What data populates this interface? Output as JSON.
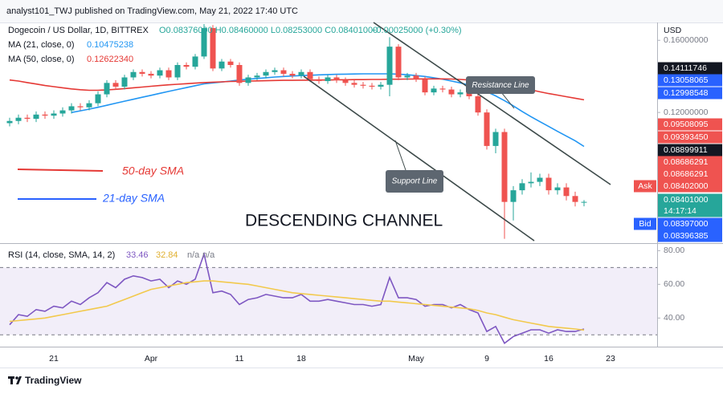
{
  "header": "analyst101_TWJ published on TradingView.com, May 21, 2022 17:40 UTC",
  "currency": "USD",
  "footer": "TradingView",
  "annotations": {
    "resistance": "Resistance Line",
    "support": "Support Line",
    "sma50": "50-day SMA",
    "sma21": "21-day SMA",
    "channel": "DESCENDING CHANNEL"
  },
  "price_labels": [
    {
      "text": "0.14111746",
      "color": "#131722"
    },
    {
      "text": "0.13058065",
      "color": "#2962ff"
    },
    {
      "text": "0.12998548",
      "color": "#2962ff"
    },
    {
      "text": "0.09508095",
      "color": "#ef5350"
    },
    {
      "text": "0.09393450",
      "color": "#ef5350"
    },
    {
      "text": "0.08899911",
      "color": "#131722"
    },
    {
      "text": "0.08686291",
      "color": "#ef5350"
    },
    {
      "text": "0.08686291",
      "color": "#ef5350"
    },
    {
      "tag": "Ask",
      "text": "0.08402000",
      "color": "#ef5350"
    },
    {
      "text": "0.08401000",
      "color": "#26a69a"
    },
    {
      "text": "14:17:14",
      "color": "#26a69a"
    },
    {
      "tag": "Bid",
      "text": "0.08397000",
      "color": "#2962ff"
    },
    {
      "text": "0.08396385",
      "color": "#2962ff"
    }
  ],
  "chart_data": [
    {
      "type": "candlestick",
      "title": "Dogecoin / US Dollar, 1D, BITTREX",
      "ohlc": "O0.08376000 H0.08460000 L0.08253000 C0.08401000",
      "change": "+0.00025000 (+0.30%)",
      "categories": [
        null,
        null,
        null,
        null,
        null,
        "21",
        null,
        null,
        null,
        null,
        null,
        null,
        null,
        null,
        null,
        null,
        "Apr",
        null,
        null,
        null,
        null,
        null,
        null,
        null,
        null,
        null,
        "11",
        null,
        null,
        null,
        null,
        null,
        null,
        "18",
        null,
        null,
        null,
        null,
        null,
        null,
        null,
        null,
        null,
        null,
        null,
        null,
        "May",
        null,
        null,
        null,
        null,
        null,
        null,
        null,
        "9",
        null,
        null,
        null,
        null,
        null,
        null,
        "16",
        null,
        null,
        null,
        null,
        null,
        null,
        "23",
        null,
        null
      ],
      "open": [
        0.115,
        0.116,
        0.1175,
        0.117,
        0.119,
        0.1185,
        0.1195,
        0.121,
        0.123,
        0.1225,
        0.1245,
        0.129,
        0.135,
        0.133,
        0.138,
        0.141,
        0.14,
        0.139,
        0.142,
        0.138,
        0.145,
        0.144,
        0.15,
        0.168,
        0.143,
        0.147,
        0.145,
        0.135,
        0.138,
        0.139,
        0.141,
        0.142,
        0.14,
        0.139,
        0.141,
        0.137,
        0.136,
        0.138,
        0.1365,
        0.135,
        0.134,
        0.1335,
        0.133,
        0.134,
        0.156,
        0.138,
        0.139,
        0.137,
        0.13,
        0.132,
        0.1315,
        0.129,
        0.13,
        0.128,
        0.12,
        0.105,
        0.111,
        0.084,
        0.088,
        0.0905,
        0.091,
        0.0925,
        0.088,
        0.089,
        0.086,
        0.08376,
        null,
        null,
        null,
        null,
        null
      ],
      "high": [
        0.1175,
        0.119,
        0.119,
        0.1205,
        0.1205,
        0.121,
        0.1225,
        0.1245,
        0.1245,
        0.126,
        0.1305,
        0.1365,
        0.1365,
        0.1395,
        0.1425,
        0.1425,
        0.1415,
        0.1435,
        0.1435,
        0.1465,
        0.1465,
        0.1515,
        0.18,
        0.17,
        0.1485,
        0.1485,
        0.1465,
        0.1395,
        0.1405,
        0.1425,
        0.1435,
        0.1435,
        0.1415,
        0.1425,
        0.1425,
        0.1385,
        0.1395,
        0.1395,
        0.138,
        0.1365,
        0.1355,
        0.135,
        0.1355,
        0.162,
        0.1575,
        0.1405,
        0.1405,
        0.1385,
        0.1335,
        0.1335,
        0.133,
        0.1315,
        0.1315,
        0.1295,
        0.1215,
        0.1125,
        0.1125,
        0.0895,
        0.092,
        0.0945,
        0.094,
        0.094,
        0.0905,
        0.0905,
        0.0875,
        0.0846,
        null,
        null,
        null,
        null,
        null
      ],
      "low": [
        0.1135,
        0.1145,
        0.1155,
        0.1155,
        0.117,
        0.117,
        0.118,
        0.1195,
        0.121,
        0.121,
        0.123,
        0.1275,
        0.1315,
        0.1315,
        0.1365,
        0.1385,
        0.1375,
        0.1375,
        0.1365,
        0.1365,
        0.1425,
        0.1425,
        0.1485,
        0.1415,
        0.1415,
        0.1435,
        0.1335,
        0.1335,
        0.1365,
        0.1375,
        0.1395,
        0.1385,
        0.1375,
        0.1375,
        0.1355,
        0.1345,
        0.1345,
        0.135,
        0.1335,
        0.1325,
        0.132,
        0.1315,
        0.1315,
        0.128,
        0.1365,
        0.1365,
        0.1355,
        0.1285,
        0.1285,
        0.13,
        0.1275,
        0.1275,
        0.1265,
        0.1185,
        0.1035,
        0.102,
        0.0725,
        0.078,
        0.0865,
        0.089,
        0.0895,
        0.0865,
        0.0865,
        0.0845,
        0.0825,
        0.08253,
        null,
        null,
        null,
        null,
        null
      ],
      "close": [
        0.116,
        0.1175,
        0.117,
        0.119,
        0.1185,
        0.1195,
        0.121,
        0.123,
        0.1225,
        0.1245,
        0.129,
        0.135,
        0.133,
        0.138,
        0.141,
        0.14,
        0.139,
        0.142,
        0.138,
        0.145,
        0.144,
        0.15,
        0.168,
        0.143,
        0.147,
        0.145,
        0.135,
        0.138,
        0.139,
        0.141,
        0.142,
        0.14,
        0.139,
        0.141,
        0.137,
        0.136,
        0.138,
        0.1365,
        0.135,
        0.134,
        0.1335,
        0.133,
        0.134,
        0.156,
        0.138,
        0.139,
        0.137,
        0.13,
        0.132,
        0.1315,
        0.129,
        0.13,
        0.128,
        0.12,
        0.105,
        0.111,
        0.084,
        0.088,
        0.0905,
        0.091,
        0.0925,
        0.088,
        0.089,
        0.086,
        0.084,
        0.08401,
        null,
        null,
        null,
        null,
        null
      ],
      "up_color": "#26a69a",
      "down_color": "#ef5350",
      "ylim": [
        0.0715,
        0.1707
      ],
      "log": true,
      "yticks": [
        {
          "value": 0.16,
          "label": "0.16000000"
        },
        {
          "value": 0.12,
          "label": "0.12000000"
        }
      ],
      "series": [
        {
          "name": "MA (21, close, 0)",
          "color": "#2196f3",
          "legend_value": "0.10475238",
          "values": [
            null,
            null,
            null,
            null,
            null,
            null,
            null,
            0.12,
            0.1208,
            0.1216,
            0.1225,
            0.1235,
            0.1245,
            0.1255,
            0.1265,
            0.1275,
            0.1285,
            0.1295,
            0.1305,
            0.1315,
            0.1325,
            0.1335,
            0.1345,
            0.135,
            0.1355,
            0.136,
            0.1366,
            0.137,
            0.1374,
            0.1378,
            0.1382,
            0.1385,
            0.1388,
            0.139,
            0.1392,
            0.1394,
            0.1396,
            0.1397,
            0.1398,
            0.1399,
            0.14,
            0.14,
            0.14,
            0.14,
            0.1398,
            0.1395,
            0.139,
            0.1385,
            0.1378,
            0.137,
            0.136,
            0.135,
            0.1338,
            0.1322,
            0.1303,
            0.1282,
            0.1258,
            0.1232,
            0.1205,
            0.118,
            0.1157,
            0.1135,
            0.1113,
            0.1092,
            0.1072,
            0.1048,
            null,
            null,
            null,
            null,
            null
          ]
        },
        {
          "name": "MA (50, close, 0)",
          "color": "#e53935",
          "legend_value": "0.12622340",
          "values": [
            0.1366,
            0.136,
            0.1352,
            0.1344,
            0.1336,
            0.133,
            0.1324,
            0.1318,
            0.1314,
            0.1311,
            0.1311,
            0.1313,
            0.1316,
            0.132,
            0.1324,
            0.1328,
            0.1332,
            0.1336,
            0.134,
            0.1343,
            0.1346,
            0.1349,
            0.1352,
            0.1354,
            0.1356,
            0.1358,
            0.1359,
            0.136,
            0.1361,
            0.1362,
            0.1363,
            0.1364,
            0.1364,
            0.1365,
            0.1365,
            0.1366,
            0.1366,
            0.1367,
            0.1367,
            0.1368,
            0.1368,
            0.1369,
            0.1369,
            0.137,
            0.137,
            0.1371,
            0.1371,
            0.1372,
            0.1372,
            0.1372,
            0.1371,
            0.1369,
            0.1366,
            0.1362,
            0.1357,
            0.135,
            0.1342,
            0.1333,
            0.1323,
            0.1313,
            0.1303,
            0.1294,
            0.1286,
            0.1278,
            0.127,
            0.1262,
            null,
            null,
            null,
            null,
            null
          ]
        }
      ]
    },
    {
      "type": "line",
      "title": "RSI (14, close, SMA, 14, 2)",
      "extra": [
        "n/a",
        "n/a"
      ],
      "ylim": [
        23,
        83.5
      ],
      "yticks": [
        {
          "value": 80,
          "label": "80.00"
        },
        {
          "value": 60,
          "label": "60.00"
        },
        {
          "value": 40,
          "label": "40.00"
        }
      ],
      "band": [
        30,
        70
      ],
      "band_color": "#7e57c2",
      "series": [
        {
          "color": "#7e57c2",
          "legend_value": 33.46,
          "values": [
            36,
            42,
            41,
            45,
            44,
            47,
            46,
            50,
            48,
            52,
            55,
            61,
            58,
            63,
            65,
            64,
            62,
            63,
            58,
            62,
            60,
            63,
            78,
            55,
            56,
            54,
            48,
            51,
            52,
            54,
            53,
            52,
            52,
            54,
            50,
            50,
            51,
            50,
            49,
            48,
            48,
            47,
            48,
            64,
            52,
            52,
            51,
            47,
            48,
            48,
            46,
            48,
            45,
            43,
            32,
            35,
            25,
            29,
            31,
            33,
            33,
            31,
            33,
            32,
            32,
            33.46,
            null,
            null,
            null,
            null,
            null
          ]
        },
        {
          "color": "#f2c94c",
          "legend_value": 32.84,
          "values": [
            38,
            38.5,
            39,
            39.5,
            40,
            41,
            42,
            43,
            44,
            45,
            46,
            47,
            49,
            51,
            53,
            55,
            57,
            58,
            59,
            60,
            61,
            61.5,
            62,
            62,
            61.5,
            61,
            60.5,
            60,
            59,
            58,
            57,
            56,
            55,
            54.5,
            54,
            53.5,
            53,
            52.5,
            52,
            51.5,
            51,
            50.5,
            50,
            50,
            49.5,
            49,
            48.5,
            48,
            47.5,
            47,
            46.5,
            46,
            45.5,
            44.5,
            43,
            42,
            40.5,
            39,
            38,
            37,
            36,
            35,
            34.5,
            34,
            33.5,
            32.84,
            null,
            null,
            null,
            null,
            null
          ]
        }
      ]
    }
  ]
}
